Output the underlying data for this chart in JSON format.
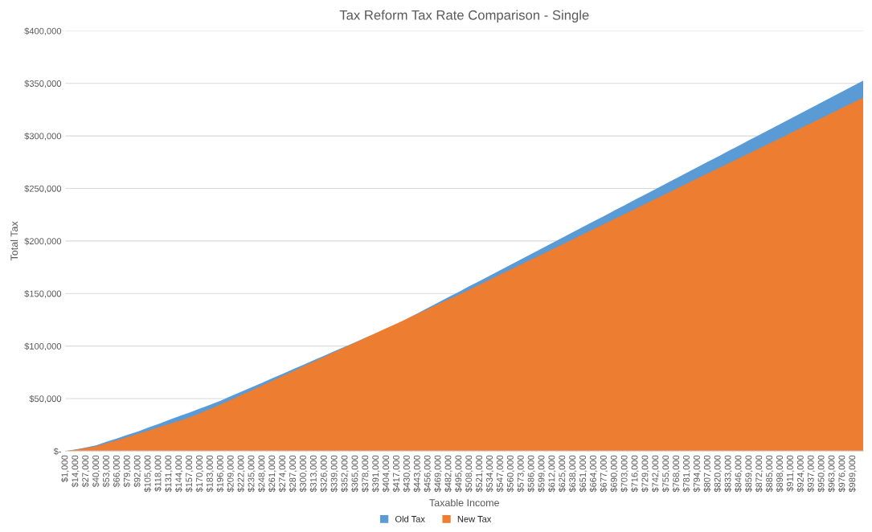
{
  "chart_data": {
    "type": "area",
    "title": "Tax Reform Tax Rate Comparison - Single",
    "xlabel": "Taxable Income",
    "ylabel": "Total Tax",
    "categories": [
      "$1,000",
      "$14,000",
      "$27,000",
      "$40,000",
      "$53,000",
      "$66,000",
      "$79,000",
      "$92,000",
      "$105,000",
      "$118,000",
      "$131,000",
      "$144,000",
      "$157,000",
      "$170,000",
      "$183,000",
      "$196,000",
      "$209,000",
      "$222,000",
      "$235,000",
      "$248,000",
      "$261,000",
      "$274,000",
      "$287,000",
      "$300,000",
      "$313,000",
      "$326,000",
      "$339,000",
      "$352,000",
      "$365,000",
      "$378,000",
      "$391,000",
      "$404,000",
      "$417,000",
      "$430,000",
      "$443,000",
      "$456,000",
      "$469,000",
      "$482,000",
      "$495,000",
      "$508,000",
      "$521,000",
      "$534,000",
      "$547,000",
      "$560,000",
      "$573,000",
      "$586,000",
      "$599,000",
      "$612,000",
      "$625,000",
      "$638,000",
      "$651,000",
      "$664,000",
      "$677,000",
      "$690,000",
      "$703,000",
      "$716,000",
      "$729,000",
      "$742,000",
      "$755,000",
      "$768,000",
      "$781,000",
      "$794,000",
      "$807,000",
      "$820,000",
      "$833,000",
      "$846,000",
      "$859,000",
      "$872,000",
      "$885,000",
      "$898,000",
      "$911,000",
      "$924,000",
      "$937,000",
      "$950,000",
      "$963,000",
      "$976,000",
      "$989,000",
      null
    ],
    "series": [
      {
        "name": "Old Tax",
        "color": "#5b9bd5",
        "values": [
          100,
          1600,
          3600,
          5700,
          9000,
          12200,
          15500,
          18700,
          22400,
          26000,
          29700,
          33300,
          36900,
          40600,
          44200,
          48100,
          52400,
          56700,
          60900,
          65200,
          69500,
          73800,
          78100,
          82400,
          86700,
          91000,
          95300,
          99600,
          103800,
          108100,
          112400,
          116700,
          121000,
          126100,
          131200,
          136400,
          141500,
          146700,
          151800,
          157000,
          162100,
          167300,
          172400,
          177600,
          182700,
          187900,
          193000,
          198200,
          203300,
          208500,
          213600,
          218800,
          223900,
          229100,
          234200,
          239400,
          244500,
          249700,
          254800,
          259900,
          265100,
          270200,
          275400,
          280500,
          285700,
          290800,
          296000,
          301100,
          306300,
          311400,
          316600,
          321700,
          326900,
          332000,
          337200,
          342300,
          347500,
          352600
        ]
      },
      {
        "name": "New Tax",
        "color": "#ed7d31",
        "values": [
          100,
          1500,
          3000,
          4700,
          7600,
          10500,
          13300,
          16400,
          19500,
          22600,
          25700,
          28800,
          32000,
          36100,
          40200,
          44400,
          48800,
          53400,
          57900,
          62500,
          67000,
          71600,
          76100,
          80700,
          85200,
          89800,
          94300,
          98900,
          103400,
          108000,
          112500,
          117100,
          121600,
          126200,
          130700,
          135300,
          139800,
          144400,
          148900,
          153600,
          158500,
          163300,
          168100,
          172900,
          177700,
          182500,
          187300,
          192100,
          196900,
          201700,
          206600,
          211400,
          216200,
          221000,
          225800,
          230600,
          235400,
          240200,
          245000,
          249800,
          254700,
          259500,
          264300,
          269100,
          273900,
          278700,
          283500,
          288300,
          293100,
          297900,
          302800,
          307600,
          312400,
          317200,
          322000,
          326800,
          331600,
          336400
        ]
      }
    ],
    "ylim": [
      0,
      400000
    ],
    "yticks": [
      {
        "value": 0,
        "label": "$-"
      },
      {
        "value": 50000,
        "label": "$50,000"
      },
      {
        "value": 100000,
        "label": "$100,000"
      },
      {
        "value": 150000,
        "label": "$150,000"
      },
      {
        "value": 200000,
        "label": "$200,000"
      },
      {
        "value": 250000,
        "label": "$250,000"
      },
      {
        "value": 300000,
        "label": "$300,000"
      },
      {
        "value": 350000,
        "label": "$350,000"
      },
      {
        "value": 400000,
        "label": "$400,000"
      }
    ],
    "grid": "y",
    "legend": "bottom"
  }
}
